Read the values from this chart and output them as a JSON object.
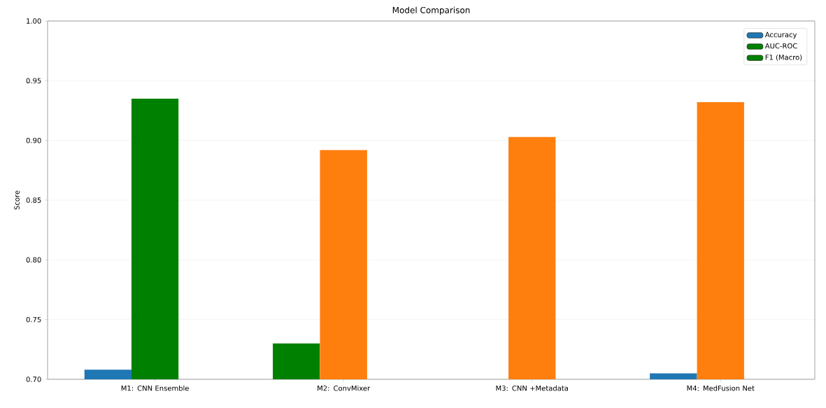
{
  "chart_data": {
    "type": "bar",
    "title": "Model Comparison",
    "ylabel": "Score",
    "categories": [
      "M1: CNN Ensemble",
      "M2: ConvMixer",
      "M3: CNN +Metadata",
      "M4: MedFusion Net"
    ],
    "series": [
      {
        "name": "Accuracy",
        "color": "#1f77b4",
        "values": [
          0.708,
          0.73,
          null,
          0.705
        ],
        "colors": [
          "#1f77b4",
          "#008000",
          null,
          "#1f77b4"
        ]
      },
      {
        "name": "AUC-ROC",
        "color": "#008000",
        "values": [
          0.935,
          0.892,
          0.903,
          0.932
        ],
        "colors": [
          "#008000",
          "#ff7f0e",
          "#ff7f0e",
          "#ff7f0e"
        ]
      },
      {
        "name": "F1 (Macro)",
        "color": "#008000",
        "values": [
          null,
          null,
          null,
          null
        ]
      }
    ],
    "ylim": [
      0.7,
      1.0
    ],
    "yticks": [
      {
        "value": 0.7,
        "label": "0.70"
      },
      {
        "value": 0.75,
        "label": "0.75"
      },
      {
        "value": 0.8,
        "label": "0.80"
      },
      {
        "value": 0.85,
        "label": "0.85"
      },
      {
        "value": 0.9,
        "label": "0.90"
      },
      {
        "value": 0.95,
        "label": "0.95"
      },
      {
        "value": 1.0,
        "label": "1.00"
      }
    ],
    "grid": "y",
    "legend": "top right"
  }
}
